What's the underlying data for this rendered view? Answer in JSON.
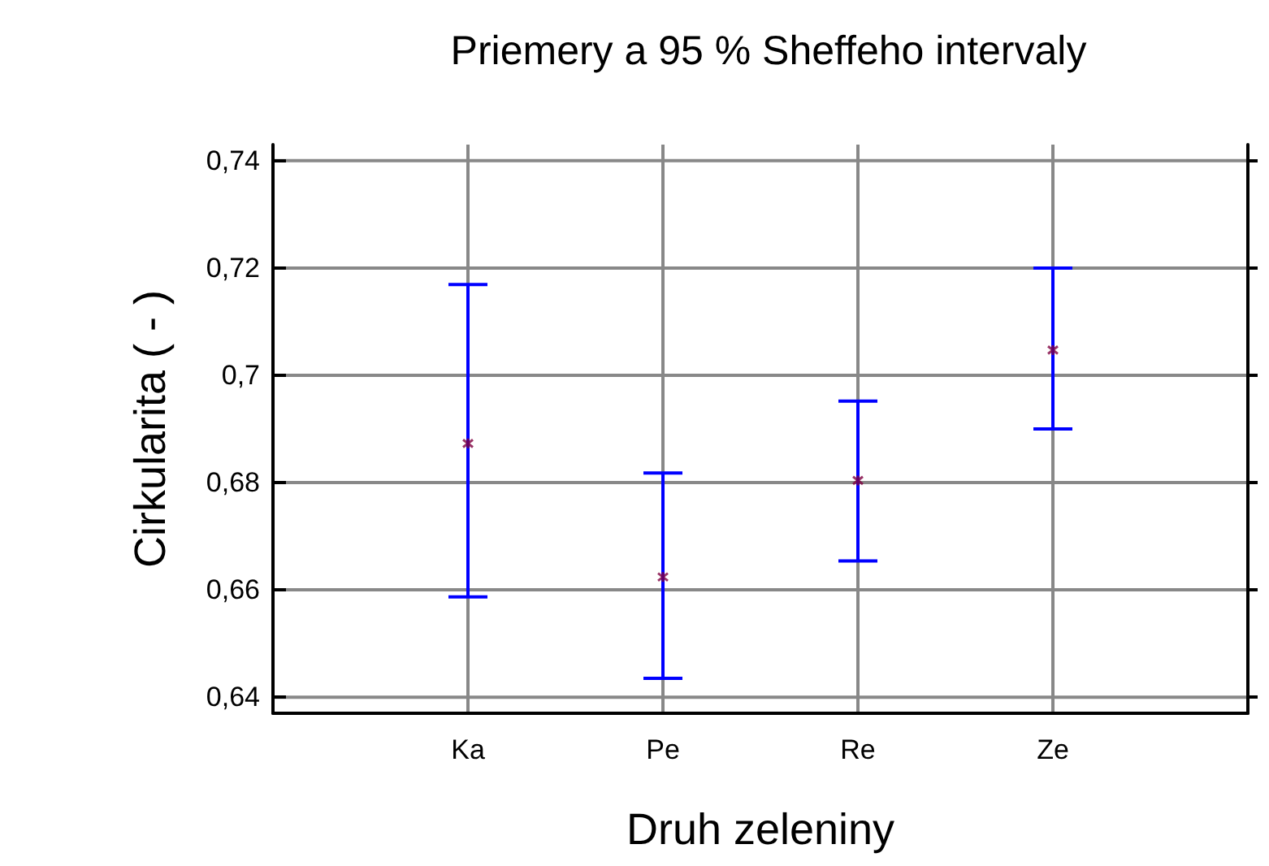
{
  "chart_data": {
    "type": "scatter",
    "title": "Priemery a 95 % Sheffeho intervaly",
    "xlabel": "Druh zeleniny",
    "ylabel": "Cirkularita ( - )",
    "categories": [
      null,
      "Ka",
      "Pe",
      "Re",
      "Ze",
      null
    ],
    "series": [
      {
        "color": "#800040",
        "values": [
          null,
          0.6873,
          0.6624,
          0.6804,
          0.7047,
          null
        ],
        "errors": [
          null,
          [
            0.6587,
            0.7169
          ],
          [
            0.6435,
            0.6818
          ],
          [
            0.6654,
            0.6952
          ],
          [
            0.69,
            0.72
          ],
          null
        ]
      }
    ],
    "ylim": [
      0.637,
      0.743
    ],
    "yticks": [
      {
        "value": 0.64,
        "label": "0,64"
      },
      {
        "value": 0.66,
        "label": "0,66"
      },
      {
        "value": 0.68,
        "label": "0,68"
      },
      {
        "value": 0.7,
        "label": "0,7"
      },
      {
        "value": 0.72,
        "label": "0,72"
      },
      {
        "value": 0.74,
        "label": "0,74"
      }
    ],
    "grid": true,
    "marker": "cross"
  }
}
